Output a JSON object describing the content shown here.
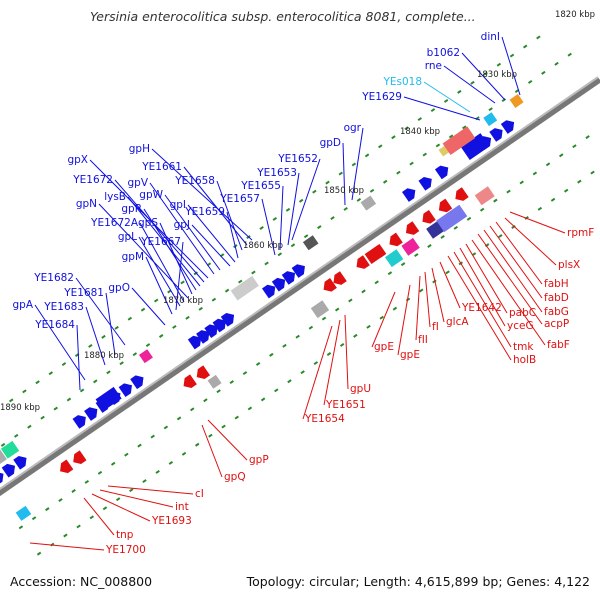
{
  "title": "Yersinia enterocolitica subsp. enterocolitica 8081, complete...",
  "accession_text": "Accession: NC_008800",
  "topology_text": "Topology: circular; Length: 4,615,899 bp; Genes: 4,122",
  "colors": {
    "plus_strand": "#1010e0",
    "minus_strand": "#e01010",
    "backbone": "#777777",
    "tick": "#2a8a2a",
    "highlight": "#22bbee"
  },
  "ruler": [
    "1820 kbp",
    "1830 kbp",
    "1840 kbp",
    "1850 kbp",
    "1860 kbp",
    "1870 kbp",
    "1880 kbp",
    "1890 kbp"
  ],
  "genes_plus": [
    "dinI",
    "b1062",
    "rne",
    "YEs018",
    "YE1629",
    "ogr",
    "gpD",
    "YE1652",
    "YE1653",
    "YE1655",
    "YE1657",
    "gpH",
    "YE1661",
    "YE1658",
    "YE1659",
    "gpI",
    "gpJ",
    "gpW",
    "gpV",
    "gpX",
    "YE1672",
    "lysB",
    "gpR",
    "gpS",
    "gpN",
    "YE1672A",
    "gpL",
    "YE1667",
    "gpM",
    "gpO",
    "YE1682",
    "YE1681",
    "gpA",
    "YE1683",
    "YE1684"
  ],
  "genes_minus": [
    "rpmF",
    "plsX",
    "fabH",
    "fabD",
    "fabG",
    "acpP",
    "fabF",
    "pabC",
    "yceG",
    "tmk",
    "holB",
    "YE1642",
    "glcA",
    "fII",
    "fI",
    "gpE",
    "gpE",
    "gpU",
    "YE1651",
    "YE1654",
    "gpP",
    "gpQ",
    "cI",
    "int",
    "YE1693",
    "tnp",
    "YE1700"
  ]
}
